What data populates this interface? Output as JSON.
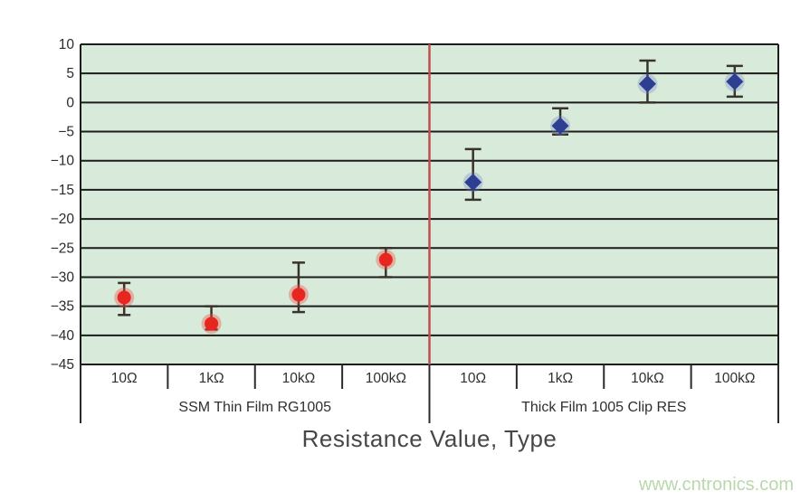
{
  "page": {
    "watermark": "www.cntronics.com"
  },
  "chart_data": {
    "type": "scatter",
    "title": "",
    "xlabel": "Resistance Value, Type",
    "ylabel": "",
    "ylim": [
      -45,
      10
    ],
    "ytick_step": 5,
    "grid": true,
    "legend_position": "none",
    "categories": [
      "10Ω",
      "1kΩ",
      "10kΩ",
      "100kΩ",
      "10Ω",
      "1kΩ",
      "10kΩ",
      "100kΩ"
    ],
    "plot_bg": "#d8ebda",
    "grid_color": "#1c1c1c",
    "divider_color": "#c0504d",
    "error_bar_color": "#3a322d",
    "tick_label_color": "#2b2b2b",
    "groups": [
      {
        "label": "SSM Thin Film RG1005",
        "marker": "circle",
        "color": "#e6261f",
        "halo": "rgba(240,80,70,0.38)",
        "points": [
          {
            "x": "10Ω",
            "y": -33.5,
            "hi": -31,
            "lo": -36.5
          },
          {
            "x": "1kΩ",
            "y": -38,
            "hi": -35,
            "lo": -39
          },
          {
            "x": "10kΩ",
            "y": -33,
            "hi": -27.5,
            "lo": -36
          },
          {
            "x": "100kΩ",
            "y": -27,
            "hi": -25,
            "lo": -30
          }
        ]
      },
      {
        "label": "Thick Film 1005 Clip RES",
        "marker": "diamond",
        "color": "#2e3e93",
        "halo": "rgba(110,130,195,0.30)",
        "points": [
          {
            "x": "10Ω",
            "y": -13.7,
            "hi": -8,
            "lo": -16.7
          },
          {
            "x": "1kΩ",
            "y": -4,
            "hi": -1,
            "lo": -5.5
          },
          {
            "x": "10kΩ",
            "y": 3.2,
            "hi": 7.2,
            "lo": 0
          },
          {
            "x": "100kΩ",
            "y": 3.6,
            "hi": 6.3,
            "lo": 1
          }
        ]
      }
    ]
  }
}
